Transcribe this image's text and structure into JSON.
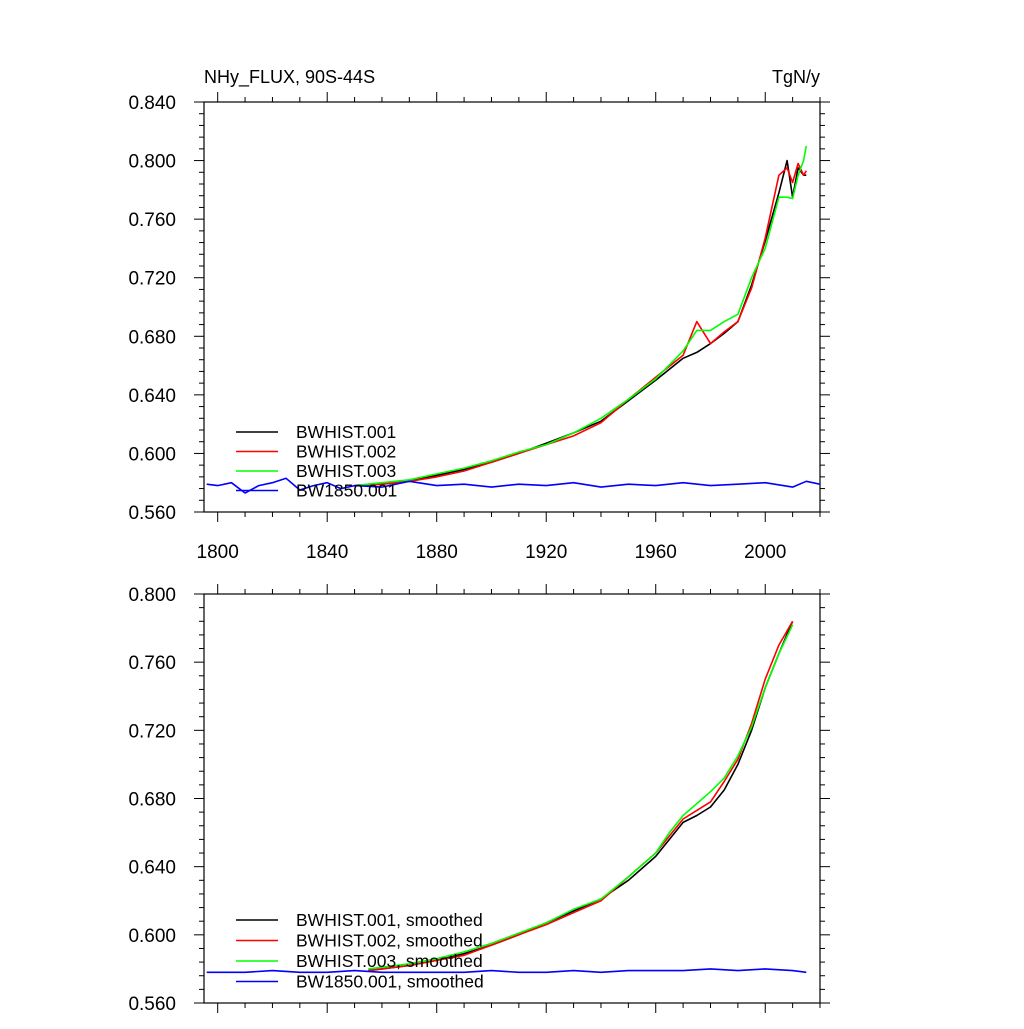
{
  "chart_data": [
    {
      "type": "line",
      "title_left": "NHy_FLUX, 90S-44S",
      "title_right": "TgN/y",
      "xlim": [
        1795,
        2020
      ],
      "ylim": [
        0.56,
        0.84
      ],
      "xticks": [
        1800,
        1840,
        1880,
        1920,
        1960,
        2000
      ],
      "x_tick_labels": [
        "1800",
        "1840",
        "1880",
        "1920",
        "1960",
        "2000"
      ],
      "yticks": [
        0.56,
        0.6,
        0.64,
        0.68,
        0.72,
        0.76,
        0.8,
        0.84
      ],
      "y_tick_labels": [
        "0.560",
        "0.600",
        "0.640",
        "0.680",
        "0.720",
        "0.760",
        "0.800",
        "0.840"
      ],
      "legend_position": "lower-left",
      "grid": false,
      "series": [
        {
          "name": "BWHIST.001",
          "color": "#000000",
          "x": [
            1850,
            1860,
            1870,
            1880,
            1890,
            1900,
            1910,
            1920,
            1930,
            1940,
            1950,
            1960,
            1970,
            1975,
            1980,
            1985,
            1990,
            1995,
            2000,
            2005,
            2008,
            2010,
            2012,
            2014,
            2015
          ],
          "y": [
            0.578,
            0.579,
            0.581,
            0.585,
            0.589,
            0.594,
            0.6,
            0.607,
            0.614,
            0.622,
            0.636,
            0.65,
            0.665,
            0.669,
            0.675,
            0.682,
            0.69,
            0.715,
            0.745,
            0.778,
            0.8,
            0.775,
            0.795,
            0.79,
            0.79
          ]
        },
        {
          "name": "BWHIST.002",
          "color": "#ff0000",
          "x": [
            1850,
            1860,
            1870,
            1880,
            1890,
            1900,
            1910,
            1920,
            1930,
            1940,
            1950,
            1960,
            1970,
            1975,
            1980,
            1985,
            1990,
            1995,
            2000,
            2005,
            2008,
            2010,
            2012,
            2014,
            2015
          ],
          "y": [
            0.578,
            0.579,
            0.581,
            0.584,
            0.588,
            0.594,
            0.6,
            0.606,
            0.612,
            0.621,
            0.637,
            0.652,
            0.667,
            0.69,
            0.675,
            0.683,
            0.69,
            0.713,
            0.747,
            0.79,
            0.795,
            0.785,
            0.798,
            0.79,
            0.793
          ]
        },
        {
          "name": "BWHIST.003",
          "color": "#00ff00",
          "x": [
            1850,
            1860,
            1870,
            1880,
            1890,
            1900,
            1910,
            1920,
            1930,
            1940,
            1950,
            1960,
            1970,
            1975,
            1980,
            1985,
            1990,
            1995,
            2000,
            2005,
            2008,
            2010,
            2012,
            2014,
            2015
          ],
          "y": [
            0.578,
            0.58,
            0.582,
            0.586,
            0.59,
            0.595,
            0.601,
            0.606,
            0.614,
            0.624,
            0.637,
            0.651,
            0.67,
            0.684,
            0.684,
            0.69,
            0.695,
            0.72,
            0.74,
            0.775,
            0.775,
            0.774,
            0.79,
            0.8,
            0.81
          ]
        },
        {
          "name": "BW1850.001",
          "color": "#0000ff",
          "x": [
            1796,
            1800,
            1805,
            1810,
            1815,
            1820,
            1825,
            1830,
            1835,
            1840,
            1845,
            1850,
            1860,
            1870,
            1880,
            1890,
            1900,
            1910,
            1920,
            1930,
            1940,
            1950,
            1960,
            1970,
            1980,
            1990,
            2000,
            2010,
            2015,
            2020
          ],
          "y": [
            0.579,
            0.578,
            0.58,
            0.573,
            0.578,
            0.58,
            0.583,
            0.575,
            0.578,
            0.58,
            0.576,
            0.578,
            0.577,
            0.581,
            0.578,
            0.579,
            0.577,
            0.579,
            0.578,
            0.58,
            0.577,
            0.579,
            0.578,
            0.58,
            0.578,
            0.579,
            0.58,
            0.577,
            0.581,
            0.579
          ]
        }
      ]
    },
    {
      "type": "line",
      "xlim": [
        1795,
        2020
      ],
      "ylim": [
        0.56,
        0.8
      ],
      "xticks": [
        1800,
        1840,
        1880,
        1920,
        1960,
        2000
      ],
      "yticks": [
        0.56,
        0.6,
        0.64,
        0.68,
        0.72,
        0.76,
        0.8
      ],
      "y_tick_labels": [
        "0.560",
        "0.600",
        "0.640",
        "0.680",
        "0.720",
        "0.760",
        "0.800"
      ],
      "legend_position": "lower-left",
      "grid": false,
      "series": [
        {
          "name": "BWHIST.001, smoothed",
          "color": "#000000",
          "x": [
            1855,
            1860,
            1870,
            1880,
            1890,
            1900,
            1910,
            1920,
            1930,
            1940,
            1950,
            1960,
            1965,
            1970,
            1975,
            1980,
            1985,
            1990,
            1995,
            2000,
            2005,
            2010
          ],
          "y": [
            0.579,
            0.58,
            0.582,
            0.585,
            0.589,
            0.594,
            0.6,
            0.607,
            0.614,
            0.621,
            0.632,
            0.646,
            0.656,
            0.666,
            0.67,
            0.675,
            0.685,
            0.7,
            0.72,
            0.745,
            0.765,
            0.784
          ]
        },
        {
          "name": "BWHIST.002, smoothed",
          "color": "#ff0000",
          "x": [
            1855,
            1860,
            1870,
            1880,
            1890,
            1900,
            1910,
            1920,
            1930,
            1940,
            1950,
            1960,
            1965,
            1970,
            1975,
            1980,
            1985,
            1990,
            1995,
            2000,
            2005,
            2010
          ],
          "y": [
            0.579,
            0.58,
            0.582,
            0.585,
            0.588,
            0.594,
            0.6,
            0.606,
            0.613,
            0.62,
            0.634,
            0.648,
            0.658,
            0.668,
            0.673,
            0.678,
            0.69,
            0.703,
            0.724,
            0.75,
            0.77,
            0.784
          ]
        },
        {
          "name": "BWHIST.003, smoothed",
          "color": "#00ff00",
          "x": [
            1855,
            1860,
            1870,
            1880,
            1890,
            1900,
            1910,
            1920,
            1930,
            1940,
            1950,
            1960,
            1965,
            1970,
            1975,
            1980,
            1985,
            1990,
            1995,
            2000,
            2005,
            2010
          ],
          "y": [
            0.58,
            0.581,
            0.583,
            0.586,
            0.59,
            0.595,
            0.601,
            0.607,
            0.615,
            0.621,
            0.634,
            0.648,
            0.66,
            0.67,
            0.677,
            0.684,
            0.692,
            0.705,
            0.722,
            0.745,
            0.765,
            0.782
          ]
        },
        {
          "name": "BW1850.001, smoothed",
          "color": "#0000ff",
          "x": [
            1796,
            1800,
            1810,
            1820,
            1830,
            1840,
            1850,
            1860,
            1870,
            1880,
            1890,
            1900,
            1910,
            1920,
            1930,
            1940,
            1950,
            1960,
            1970,
            1980,
            1990,
            2000,
            2010,
            2015
          ],
          "y": [
            0.578,
            0.578,
            0.578,
            0.579,
            0.578,
            0.578,
            0.579,
            0.578,
            0.578,
            0.578,
            0.578,
            0.579,
            0.578,
            0.578,
            0.579,
            0.578,
            0.579,
            0.579,
            0.579,
            0.58,
            0.579,
            0.58,
            0.579,
            0.578
          ]
        }
      ]
    }
  ]
}
